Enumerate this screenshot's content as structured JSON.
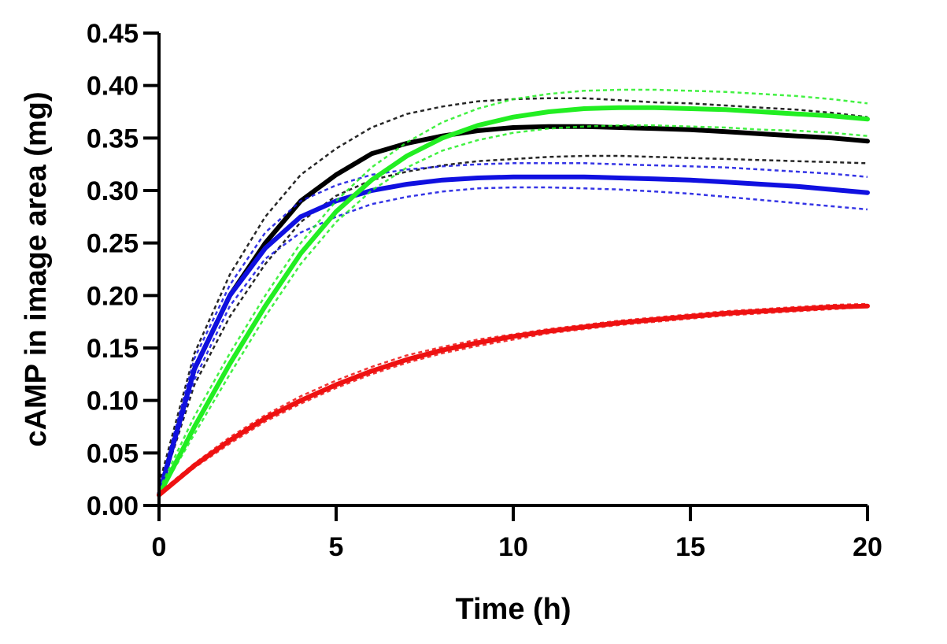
{
  "chart_data": {
    "type": "line",
    "title": "",
    "xlabel": "Time (h)",
    "ylabel": "cAMP in image area (mg)",
    "xlim": [
      0,
      20
    ],
    "ylim": [
      0,
      0.45
    ],
    "xticks": [
      0,
      5,
      10,
      15,
      20
    ],
    "xtick_labels": [
      "0",
      "5",
      "10",
      "15",
      "20"
    ],
    "yticks": [
      0,
      0.05,
      0.1,
      0.15,
      0.2,
      0.25,
      0.3,
      0.35,
      0.4,
      0.45
    ],
    "ytick_labels": [
      "0.00",
      "0.05",
      "0.10",
      "0.15",
      "0.20",
      "0.25",
      "0.30",
      "0.35",
      "0.40",
      "0.45"
    ],
    "grid": false,
    "legend": "none",
    "x": [
      0,
      1,
      2,
      3,
      4,
      5,
      6,
      7,
      8,
      9,
      10,
      11,
      12,
      13,
      14,
      15,
      16,
      17,
      18,
      19,
      20
    ],
    "series": [
      {
        "color": "#000000",
        "values": [
          0.01,
          0.13,
          0.2,
          0.25,
          0.29,
          0.315,
          0.335,
          0.345,
          0.352,
          0.357,
          0.36,
          0.361,
          0.361,
          0.36,
          0.359,
          0.358,
          0.356,
          0.354,
          0.352,
          0.35,
          0.347
        ],
        "upper": [
          0.02,
          0.145,
          0.22,
          0.275,
          0.315,
          0.34,
          0.36,
          0.373,
          0.38,
          0.385,
          0.387,
          0.388,
          0.388,
          0.386,
          0.384,
          0.383,
          0.381,
          0.379,
          0.377,
          0.374,
          0.37
        ],
        "lower": [
          0.01,
          0.115,
          0.18,
          0.23,
          0.27,
          0.295,
          0.31,
          0.318,
          0.324,
          0.328,
          0.33,
          0.332,
          0.333,
          0.333,
          0.332,
          0.331,
          0.33,
          0.329,
          0.328,
          0.327,
          0.326
        ]
      },
      {
        "color": "#1010e0",
        "values": [
          0.01,
          0.13,
          0.2,
          0.245,
          0.275,
          0.29,
          0.3,
          0.306,
          0.31,
          0.312,
          0.313,
          0.313,
          0.313,
          0.312,
          0.311,
          0.31,
          0.308,
          0.306,
          0.304,
          0.301,
          0.298
        ],
        "upper": [
          0.015,
          0.14,
          0.21,
          0.26,
          0.29,
          0.305,
          0.315,
          0.32,
          0.323,
          0.325,
          0.326,
          0.326,
          0.326,
          0.325,
          0.324,
          0.323,
          0.322,
          0.32,
          0.318,
          0.316,
          0.313
        ],
        "lower": [
          0.01,
          0.12,
          0.19,
          0.235,
          0.26,
          0.275,
          0.287,
          0.294,
          0.299,
          0.302,
          0.303,
          0.303,
          0.302,
          0.301,
          0.299,
          0.297,
          0.294,
          0.291,
          0.288,
          0.285,
          0.282
        ]
      },
      {
        "color": "#22ee22",
        "values": [
          0.01,
          0.075,
          0.135,
          0.19,
          0.24,
          0.28,
          0.31,
          0.333,
          0.35,
          0.362,
          0.37,
          0.375,
          0.378,
          0.379,
          0.379,
          0.378,
          0.377,
          0.375,
          0.373,
          0.371,
          0.368
        ],
        "upper": [
          0.015,
          0.085,
          0.145,
          0.2,
          0.25,
          0.29,
          0.322,
          0.346,
          0.365,
          0.378,
          0.387,
          0.392,
          0.395,
          0.396,
          0.396,
          0.395,
          0.394,
          0.392,
          0.39,
          0.387,
          0.383
        ],
        "lower": [
          0.01,
          0.068,
          0.125,
          0.18,
          0.23,
          0.27,
          0.3,
          0.322,
          0.338,
          0.348,
          0.355,
          0.359,
          0.361,
          0.362,
          0.362,
          0.361,
          0.36,
          0.358,
          0.357,
          0.355,
          0.352
        ]
      },
      {
        "color": "#ee1111",
        "values": [
          0.01,
          0.038,
          0.062,
          0.083,
          0.1,
          0.115,
          0.128,
          0.139,
          0.148,
          0.155,
          0.161,
          0.166,
          0.17,
          0.174,
          0.177,
          0.18,
          0.183,
          0.185,
          0.187,
          0.189,
          0.19
        ],
        "upper": [
          0.012,
          0.04,
          0.065,
          0.086,
          0.104,
          0.119,
          0.132,
          0.143,
          0.151,
          0.158,
          0.163,
          0.168,
          0.172,
          0.176,
          0.179,
          0.182,
          0.185,
          0.187,
          0.189,
          0.191,
          0.192
        ],
        "lower": [
          0.009,
          0.036,
          0.059,
          0.08,
          0.097,
          0.112,
          0.125,
          0.136,
          0.145,
          0.152,
          0.158,
          0.164,
          0.168,
          0.172,
          0.175,
          0.178,
          0.181,
          0.183,
          0.185,
          0.187,
          0.189
        ]
      }
    ]
  }
}
